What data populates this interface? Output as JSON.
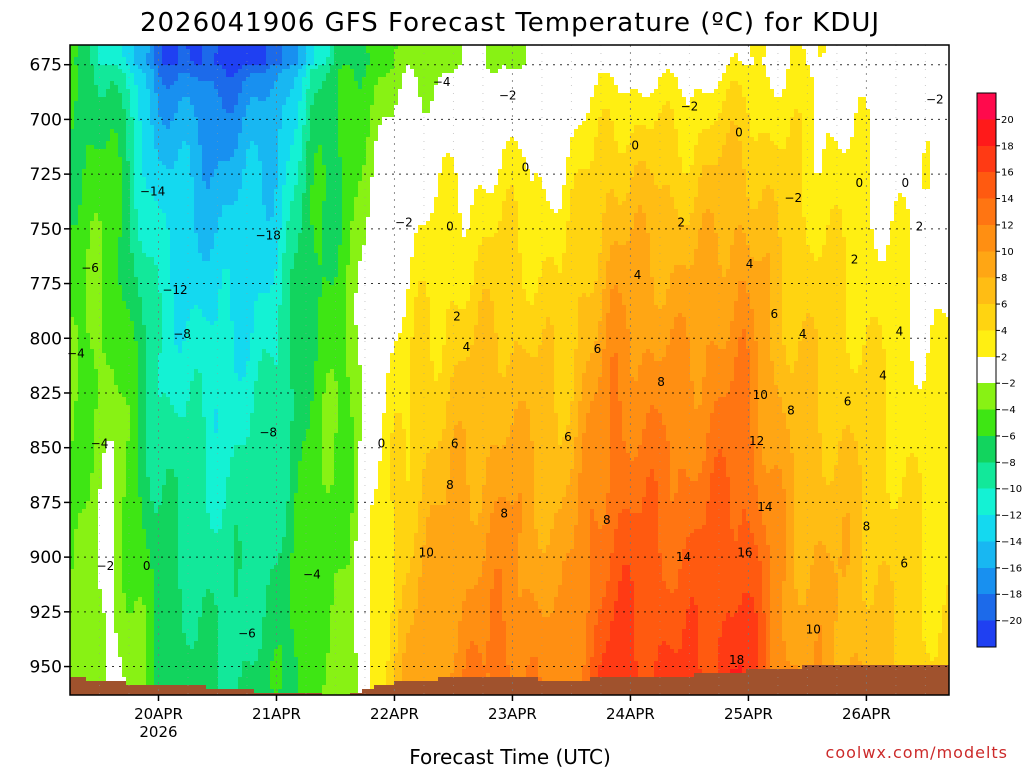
{
  "chart_data": {
    "type": "heatmap",
    "title": "2026041906 GFS Forecast Temperature (ºC) for KDUJ",
    "xlabel": "Forecast Time (UTC)",
    "ylabel": "",
    "credit": "coolwx.com/modelts",
    "y_axis": {
      "ticks": [
        675,
        700,
        725,
        750,
        775,
        800,
        825,
        850,
        875,
        900,
        925,
        950
      ],
      "range": [
        666,
        963
      ],
      "reversed": true
    },
    "x_axis": {
      "ticks": [
        "20APR",
        "21APR",
        "22APR",
        "23APR",
        "24APR",
        "25APR",
        "26APR"
      ],
      "tick_sublabels": [
        "2026",
        "",
        "",
        "",
        "",
        "",
        ""
      ],
      "range_days_from_19APR00": [
        0.25,
        7.7
      ]
    },
    "colorbar": {
      "ticks": [
        20,
        18,
        16,
        14,
        12,
        10,
        8,
        6,
        4,
        2,
        -2,
        -4,
        -6,
        -8,
        -10,
        -12,
        -14,
        -16,
        -18,
        -20
      ],
      "colors": [
        "#ff0a4c",
        "#ff1a1a",
        "#ff3a14",
        "#ff5a10",
        "#ff7512",
        "#ff8f12",
        "#ffa614",
        "#ffbd14",
        "#ffd411",
        "#ffef12",
        "#ffffff",
        "#88f214",
        "#3ee614",
        "#12d45e",
        "#12e89a",
        "#14f2d4",
        "#14d9f0",
        "#18b7f2",
        "#1890f0",
        "#1c6aea",
        "#1f40f2"
      ]
    },
    "grid": true,
    "surface_color": "#a0522d",
    "contour_labels": [
      {
        "t": -4,
        "day": 3.4,
        "p": 683
      },
      {
        "t": -2,
        "day": 3.96,
        "p": 689
      },
      {
        "t": -2,
        "day": 5.5,
        "p": 694
      },
      {
        "t": -2,
        "day": 7.58,
        "p": 691
      },
      {
        "t": 0,
        "day": 5.04,
        "p": 712
      },
      {
        "t": 0,
        "day": 5.92,
        "p": 706
      },
      {
        "t": 0,
        "day": 4.11,
        "p": 722
      },
      {
        "t": 0,
        "day": 6.94,
        "p": 729
      },
      {
        "t": 0,
        "day": 7.33,
        "p": 729
      },
      {
        "t": -2,
        "day": 6.38,
        "p": 736
      },
      {
        "t": 2,
        "day": 5.43,
        "p": 747
      },
      {
        "t": 2,
        "day": 7.45,
        "p": 749
      },
      {
        "t": -2,
        "day": 3.08,
        "p": 747
      },
      {
        "t": 0,
        "day": 3.47,
        "p": 749
      },
      {
        "t": 4,
        "day": 5.06,
        "p": 771
      },
      {
        "t": 4,
        "day": 6.01,
        "p": 766
      },
      {
        "t": 2,
        "day": 6.9,
        "p": 764
      },
      {
        "t": 2,
        "day": 3.53,
        "p": 790
      },
      {
        "t": 6,
        "day": 6.22,
        "p": 789
      },
      {
        "t": 4,
        "day": 6.46,
        "p": 798
      },
      {
        "t": 4,
        "day": 7.28,
        "p": 797
      },
      {
        "t": 4,
        "day": 3.61,
        "p": 804
      },
      {
        "t": 6,
        "day": 4.72,
        "p": 805
      },
      {
        "t": 4,
        "day": 7.14,
        "p": 817
      },
      {
        "t": 8,
        "day": 5.26,
        "p": 820
      },
      {
        "t": 10,
        "day": 6.1,
        "p": 826
      },
      {
        "t": 8,
        "day": 6.36,
        "p": 833
      },
      {
        "t": 6,
        "day": 6.84,
        "p": 829
      },
      {
        "t": -14,
        "day": 0.95,
        "p": 733
      },
      {
        "t": -6,
        "day": 0.42,
        "p": 768
      },
      {
        "t": -12,
        "day": 1.14,
        "p": 778
      },
      {
        "t": -18,
        "day": 1.93,
        "p": 753
      },
      {
        "t": -8,
        "day": 1.2,
        "p": 798
      },
      {
        "t": -4,
        "day": 0.3,
        "p": 807
      },
      {
        "t": -8,
        "day": 1.93,
        "p": 843
      },
      {
        "t": -4,
        "day": 0.5,
        "p": 848
      },
      {
        "t": 0,
        "day": 2.89,
        "p": 848
      },
      {
        "t": 6,
        "day": 3.51,
        "p": 848
      },
      {
        "t": 6,
        "day": 4.47,
        "p": 845
      },
      {
        "t": 12,
        "day": 6.07,
        "p": 847
      },
      {
        "t": 8,
        "day": 3.47,
        "p": 867
      },
      {
        "t": 8,
        "day": 3.93,
        "p": 880
      },
      {
        "t": 8,
        "day": 4.8,
        "p": 883
      },
      {
        "t": 14,
        "day": 6.14,
        "p": 877
      },
      {
        "t": 8,
        "day": 7.0,
        "p": 886
      },
      {
        "t": 10,
        "day": 3.27,
        "p": 898
      },
      {
        "t": 14,
        "day": 5.45,
        "p": 900
      },
      {
        "t": 16,
        "day": 5.97,
        "p": 898
      },
      {
        "t": 6,
        "day": 7.32,
        "p": 903
      },
      {
        "t": -2,
        "day": 0.55,
        "p": 904
      },
      {
        "t": 0,
        "day": 0.9,
        "p": 904
      },
      {
        "t": -4,
        "day": 2.3,
        "p": 908
      },
      {
        "t": -6,
        "day": 1.75,
        "p": 935
      },
      {
        "t": 10,
        "day": 6.55,
        "p": 933
      },
      {
        "t": 18,
        "day": 5.9,
        "p": 947
      }
    ]
  }
}
